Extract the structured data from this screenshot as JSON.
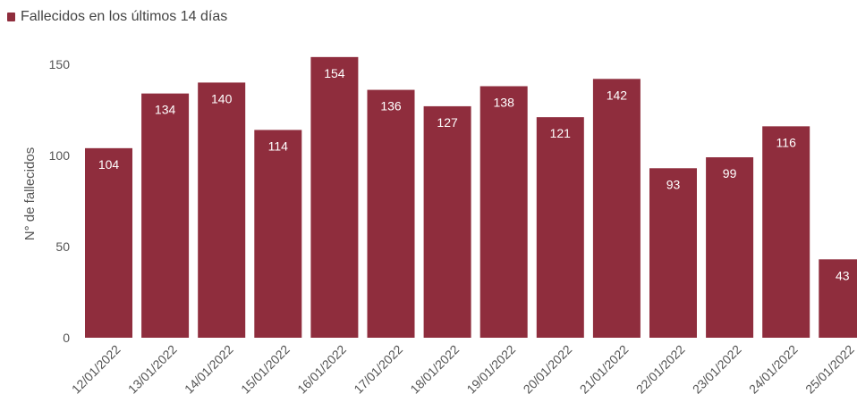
{
  "chart_data": {
    "type": "bar",
    "legend": "Fallecidos en los últimos 14 días",
    "ylabel": "N° de fallecidos",
    "color": "#8f2d3d",
    "ylim": [
      0,
      150
    ],
    "yticks": [
      0,
      50,
      100,
      150
    ],
    "categories": [
      "12/01/2022",
      "13/01/2022",
      "14/01/2022",
      "15/01/2022",
      "16/01/2022",
      "17/01/2022",
      "18/01/2022",
      "19/01/2022",
      "20/01/2022",
      "21/01/2022",
      "22/01/2022",
      "23/01/2022",
      "24/01/2022",
      "25/01/2022"
    ],
    "values": [
      104,
      134,
      140,
      114,
      154,
      136,
      127,
      138,
      121,
      142,
      93,
      99,
      116,
      43
    ],
    "grid": false,
    "legend_position": "top-left"
  }
}
